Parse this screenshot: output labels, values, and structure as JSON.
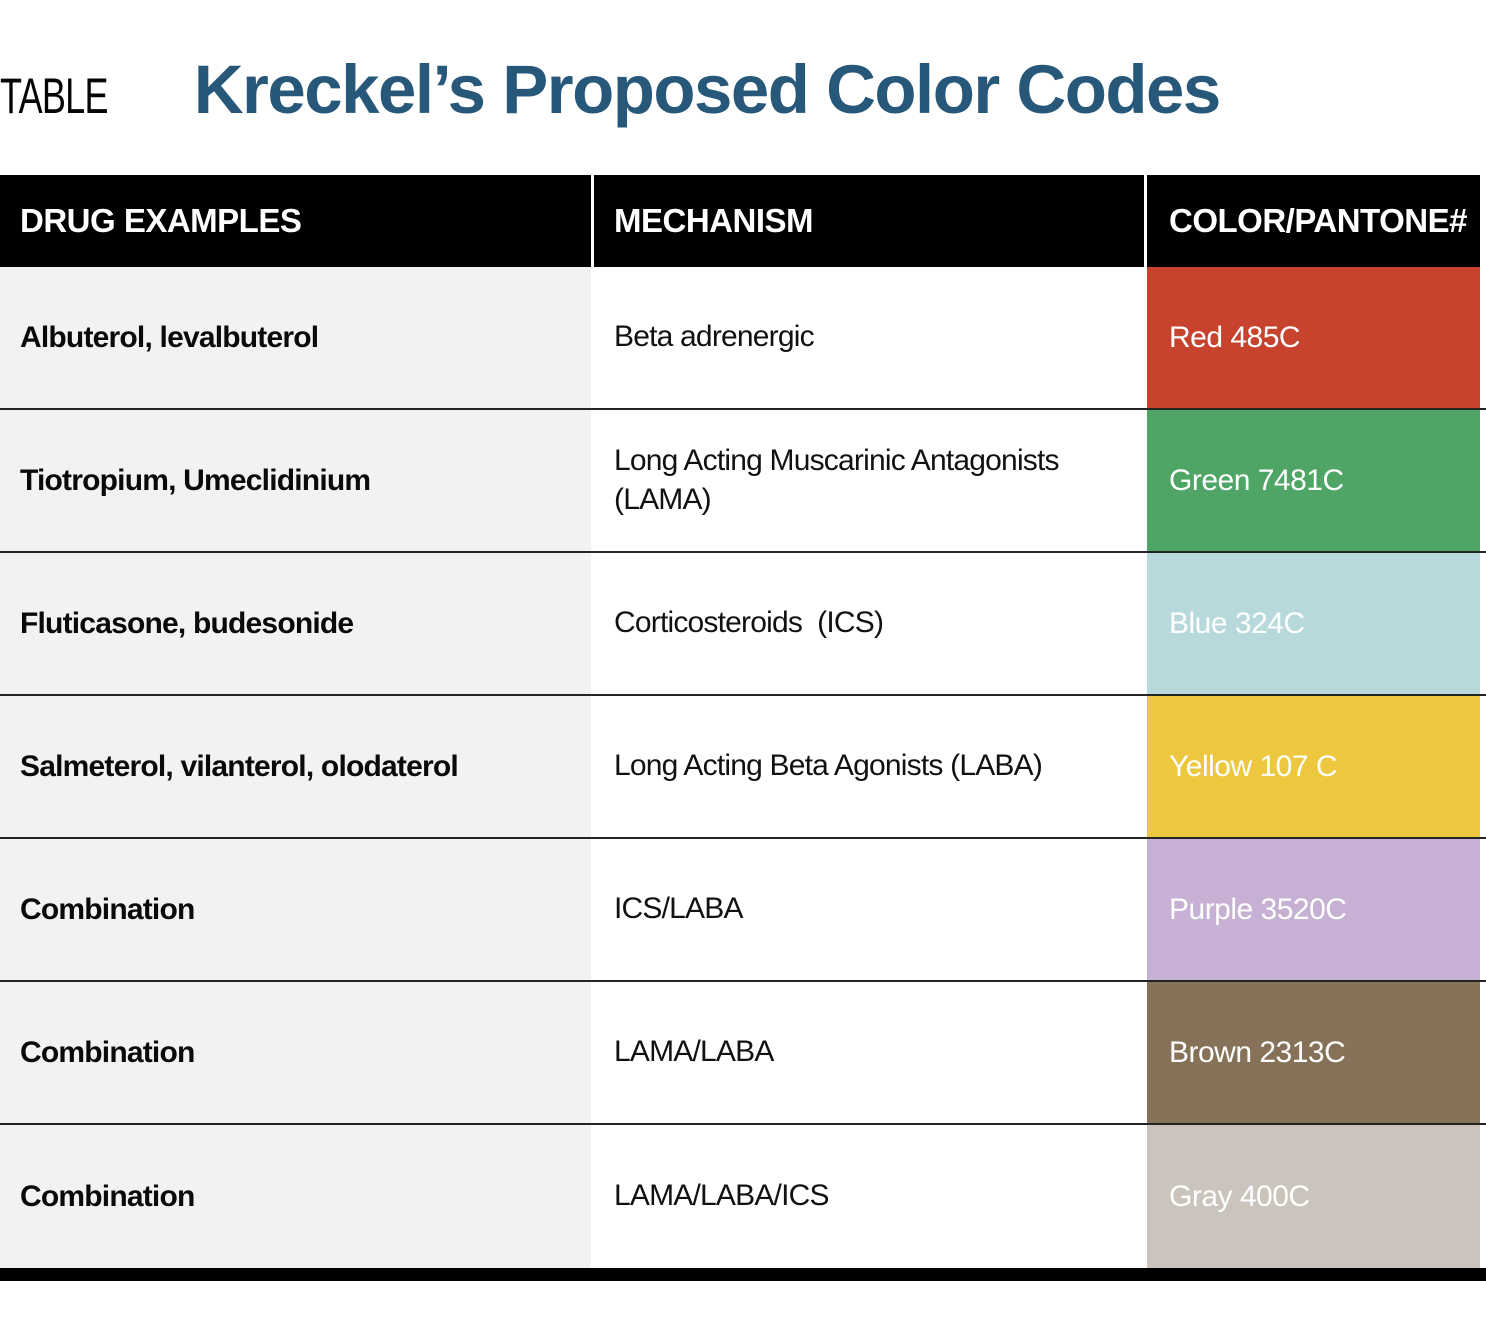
{
  "header": {
    "kicker": "TABLE",
    "title": "Kreckel’s Proposed Color Codes",
    "title_color": "#27587a"
  },
  "table": {
    "columns": [
      "DRUG EXAMPLES",
      "MECHANISM",
      "COLOR/PANTONE#"
    ],
    "rows": [
      {
        "drug": "Albuterol, levalbuterol",
        "mechanism": "Beta adrenergic",
        "pantone_label": "Red 485C",
        "color": "#c8432e"
      },
      {
        "drug": "Tiotropium, Umeclidinium",
        "mechanism": "Long Acting Muscarinic Antagonists (LAMA)",
        "pantone_label": "Green 7481C",
        "color": "#4fa566"
      },
      {
        "drug": "Fluticasone, budesonide",
        "mechanism": "Corticosteroids  (ICS)",
        "pantone_label": "Blue 324C",
        "color": "#b7d9db"
      },
      {
        "drug": "Salmeterol, vilanterol, olodaterol",
        "mechanism": "Long Acting Beta Agonists (LABA)",
        "pantone_label": "Yellow 107 C",
        "color": "#edc83e"
      },
      {
        "drug": "Combination",
        "mechanism": "ICS/LABA",
        "pantone_label": "Purple 3520C",
        "color": "#c6b0d3"
      },
      {
        "drug": "Combination",
        "mechanism": "LAMA/LABA",
        "pantone_label": "Brown 2313C",
        "color": "#857259"
      },
      {
        "drug": "Combination",
        "mechanism": "LAMA/LABA/ICS",
        "pantone_label": "Gray 400C",
        "color": "#cac4bc"
      }
    ]
  }
}
